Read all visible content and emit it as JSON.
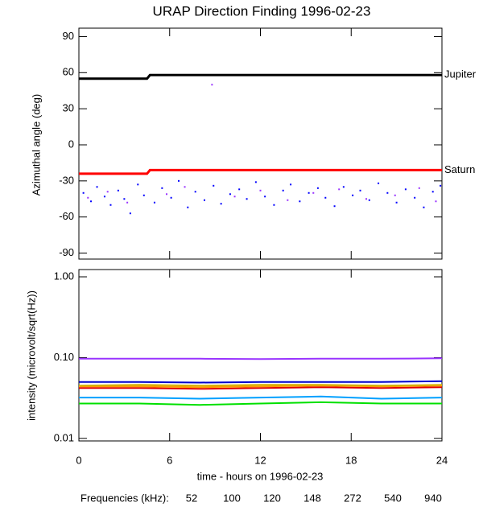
{
  "chart_data": [
    {
      "type": "line",
      "title": "URAP Direction Finding  1996-02-23",
      "y_label": "Azimuthal angle (deg)",
      "xlim": [
        0,
        24
      ],
      "xticks": [
        0,
        6,
        12,
        18,
        24
      ],
      "ylim": [
        -95,
        97
      ],
      "yticks": [
        90,
        60,
        30,
        0,
        -30,
        -60,
        -90
      ],
      "series": [
        {
          "name": "Jupiter",
          "color": "#000000",
          "x": [
            0,
            4.5,
            4.7,
            24
          ],
          "values": [
            55,
            55,
            58,
            58
          ]
        },
        {
          "name": "Saturn",
          "color": "#ff0000",
          "x": [
            0,
            4.5,
            4.7,
            24
          ],
          "values": [
            -24,
            -24,
            -21,
            -21
          ]
        },
        {
          "color": "#0000ff",
          "mode": "markers",
          "x": [
            0.3,
            0.8,
            1.2,
            1.7,
            2.1,
            2.6,
            3.0,
            3.4,
            3.9,
            4.3,
            5.0,
            5.5,
            6.1,
            6.6,
            7.2,
            7.7,
            8.3,
            8.9,
            9.4,
            10.0,
            10.6,
            11.1,
            11.7,
            12.3,
            12.9,
            13.5,
            14.0,
            14.6,
            15.2,
            15.8,
            16.3,
            16.9,
            17.5,
            18.1,
            18.6,
            19.2,
            19.8,
            20.4,
            21.0,
            21.6,
            22.2,
            22.8,
            23.4,
            23.9
          ],
          "values": [
            -40,
            -47,
            -35,
            -43,
            -50,
            -38,
            -45,
            -57,
            -33,
            -42,
            -48,
            -36,
            -44,
            -30,
            -52,
            -39,
            -46,
            -34,
            -49,
            -41,
            -37,
            -45,
            -31,
            -43,
            -50,
            -38,
            -33,
            -47,
            -40,
            -36,
            -44,
            -51,
            -35,
            -42,
            -38,
            -46,
            -32,
            -40,
            -48,
            -37,
            -44,
            -52,
            -39,
            -34
          ]
        },
        {
          "color": "#9933ff",
          "mode": "markers",
          "x": [
            0.6,
            1.9,
            3.2,
            5.8,
            7.0,
            8.8,
            10.3,
            12.0,
            13.8,
            15.5,
            17.2,
            19.0,
            20.9,
            22.5,
            23.6
          ],
          "values": [
            -44,
            -39,
            -48,
            -41,
            -35,
            50,
            -43,
            -38,
            -46,
            -40,
            -37,
            -45,
            -42,
            -36,
            -47
          ]
        }
      ]
    },
    {
      "type": "line",
      "log_y": true,
      "y_label": "intensity (microvolt/sqrt(Hz))",
      "x_label": "time - hours on 1996-02-23",
      "legend_title": "Frequencies (kHz):",
      "xlim": [
        0,
        24
      ],
      "xticks": [
        0,
        6,
        12,
        18,
        24
      ],
      "ylim": [
        0.0093,
        1.23
      ],
      "yticks": [
        {
          "value": 0.01,
          "label": "0.01"
        },
        {
          "value": 0.1,
          "label": "0.10"
        },
        {
          "value": 1,
          "label": "1.00"
        }
      ],
      "series": [
        {
          "name": "52",
          "color": "#e00000",
          "x": [
            0,
            4,
            8,
            12,
            16,
            20,
            24
          ],
          "values": [
            0.042,
            0.042,
            0.041,
            0.042,
            0.043,
            0.042,
            0.043
          ]
        },
        {
          "name": "100",
          "color": "#ff9900",
          "x": [
            0,
            4,
            8,
            12,
            16,
            20,
            24
          ],
          "values": [
            0.044,
            0.044,
            0.043,
            0.044,
            0.045,
            0.044,
            0.045
          ]
        },
        {
          "name": "120",
          "color": "#d4b000",
          "x": [
            0,
            4,
            8,
            12,
            16,
            20,
            24
          ],
          "values": [
            0.045,
            0.046,
            0.045,
            0.046,
            0.046,
            0.045,
            0.046
          ]
        },
        {
          "name": "148",
          "color": "#00e000",
          "x": [
            0,
            4,
            8,
            12,
            16,
            20,
            24
          ],
          "values": [
            0.027,
            0.027,
            0.026,
            0.027,
            0.028,
            0.027,
            0.027
          ]
        },
        {
          "name": "272",
          "color": "#00a0ff",
          "x": [
            0,
            4,
            8,
            12,
            16,
            20,
            24
          ],
          "values": [
            0.032,
            0.032,
            0.031,
            0.032,
            0.033,
            0.031,
            0.032
          ]
        },
        {
          "name": "540",
          "color": "#0000cc",
          "x": [
            0,
            4,
            8,
            12,
            16,
            20,
            24
          ],
          "values": [
            0.05,
            0.05,
            0.049,
            0.05,
            0.05,
            0.05,
            0.051
          ]
        },
        {
          "name": "940",
          "color": "#9933ff",
          "x": [
            0,
            4,
            8,
            12,
            16,
            20,
            24
          ],
          "values": [
            0.097,
            0.097,
            0.097,
            0.096,
            0.097,
            0.097,
            0.098
          ]
        }
      ]
    }
  ]
}
